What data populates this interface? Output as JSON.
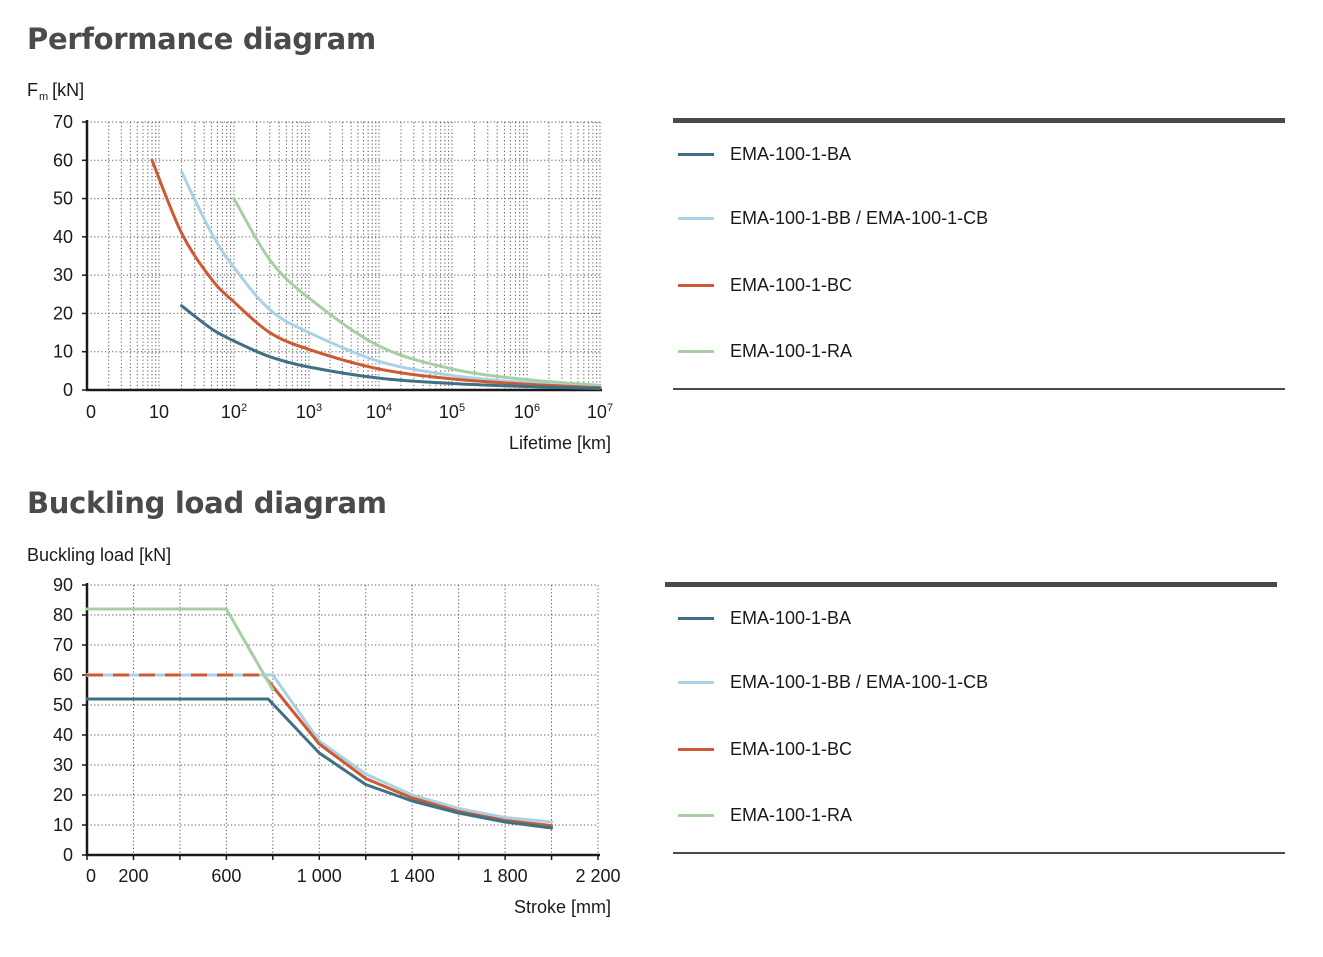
{
  "chart_data": [
    {
      "type": "line",
      "title": "Performance diagram",
      "ylabel": "F",
      "ylabel_sub": "m",
      "ylabel_unit": "[kN]",
      "xlabel": "Lifetime [km]",
      "x_scale": "log",
      "ylim": [
        0,
        70
      ],
      "y_ticks": [
        "0",
        "10",
        "20",
        "30",
        "40",
        "50",
        "60",
        "70"
      ],
      "x_ticks": [
        {
          "base": "0",
          "exp": ""
        },
        {
          "base": "10",
          "exp": ""
        },
        {
          "base": "10",
          "exp": "2"
        },
        {
          "base": "10",
          "exp": "3"
        },
        {
          "base": "10",
          "exp": "4"
        },
        {
          "base": "10",
          "exp": "5"
        },
        {
          "base": "10",
          "exp": "6"
        },
        {
          "base": "10",
          "exp": "7"
        }
      ],
      "grid": true,
      "series": [
        {
          "name": "EMA-100-1-BA",
          "color": "#3f7185",
          "x": [
            20,
            50,
            100,
            300,
            1000,
            10000,
            100000,
            1000000,
            10000000
          ],
          "y": [
            22,
            16,
            12.8,
            8.7,
            6,
            3.1,
            1.7,
            0.9,
            0.4
          ]
        },
        {
          "name": "EMA-100-1-BB / EMA-100-1-CB",
          "color": "#a9d2e4",
          "x": [
            20,
            50,
            100,
            300,
            1000,
            10000,
            100000,
            1000000,
            10000000
          ],
          "y": [
            57,
            41,
            32,
            21,
            15,
            7.5,
            3.8,
            1.9,
            0.8
          ]
        },
        {
          "name": "EMA-100-1-BC",
          "color": "#cc5a33",
          "x": [
            8,
            20,
            50,
            100,
            300,
            1000,
            10000,
            100000,
            1000000,
            10000000
          ],
          "y": [
            60,
            41,
            29,
            23,
            15,
            10.6,
            5.5,
            2.9,
            1.5,
            0.6
          ]
        },
        {
          "name": "EMA-100-1-RA",
          "color": "#a8cfa3",
          "x": [
            100,
            300,
            1000,
            10000,
            100000,
            1000000,
            10000000
          ],
          "y": [
            50,
            34,
            24,
            11.5,
            5.5,
            2.7,
            1.2
          ]
        }
      ]
    },
    {
      "type": "line",
      "title": "Buckling load diagram",
      "ylabel": "Buckling load [kN]",
      "xlabel": "Stroke [mm]",
      "xlim": [
        0,
        2200
      ],
      "ylim": [
        0,
        90
      ],
      "y_ticks": [
        "0",
        "10",
        "20",
        "30",
        "40",
        "50",
        "60",
        "70",
        "80",
        "90"
      ],
      "x_ticks": [
        {
          "value": 0,
          "label": "0"
        },
        {
          "value": 200,
          "label": "200"
        },
        {
          "value": 600,
          "label": "600"
        },
        {
          "value": 1000,
          "label": "1 000"
        },
        {
          "value": 1400,
          "label": "1 400"
        },
        {
          "value": 1800,
          "label": "1 800"
        },
        {
          "value": 2200,
          "label": "2 200"
        }
      ],
      "grid": true,
      "series": [
        {
          "name": "EMA-100-1-BB / EMA-100-1-CB",
          "color": "#a9d2e4",
          "x": [
            0,
            800,
            1000,
            1200,
            1400,
            1600,
            1800,
            2000
          ],
          "y": [
            60,
            60,
            38,
            27,
            20,
            15.5,
            12.5,
            11
          ]
        },
        {
          "name": "EMA-100-1-BC",
          "color": "#cc5a33",
          "dashed_until": 760,
          "x": [
            0,
            760,
            1000,
            1200,
            1400,
            1600,
            1800,
            2000
          ],
          "y": [
            60,
            60,
            37,
            25.5,
            19,
            14.5,
            11.5,
            9.8
          ]
        },
        {
          "name": "EMA-100-1-RA",
          "color": "#a8cfa3",
          "x": [
            0,
            600,
            800
          ],
          "y": [
            82,
            82,
            55
          ]
        },
        {
          "name": "EMA-100-1-BA",
          "color": "#3f7185",
          "x": [
            0,
            780,
            1000,
            1200,
            1400,
            1600,
            1800,
            2000
          ],
          "y": [
            52,
            52,
            34,
            23.5,
            18,
            14,
            11,
            9
          ]
        }
      ]
    }
  ],
  "legend1": {
    "items": [
      {
        "label": "EMA-100-1-BA",
        "color": "#3f7185"
      },
      {
        "label": "EMA-100-1-BB / EMA-100-1-CB",
        "color": "#a9d2e4"
      },
      {
        "label": "EMA-100-1-BC",
        "color": "#cc5a33"
      },
      {
        "label": "EMA-100-1-RA",
        "color": "#a8cfa3"
      }
    ]
  },
  "legend2": {
    "items": [
      {
        "label": "EMA-100-1-BA",
        "color": "#3f7185"
      },
      {
        "label": "EMA-100-1-BB / EMA-100-1-CB",
        "color": "#a9d2e4"
      },
      {
        "label": "EMA-100-1-BC",
        "color": "#cc5a33"
      },
      {
        "label": "EMA-100-1-RA",
        "color": "#a8cfa3"
      }
    ]
  }
}
